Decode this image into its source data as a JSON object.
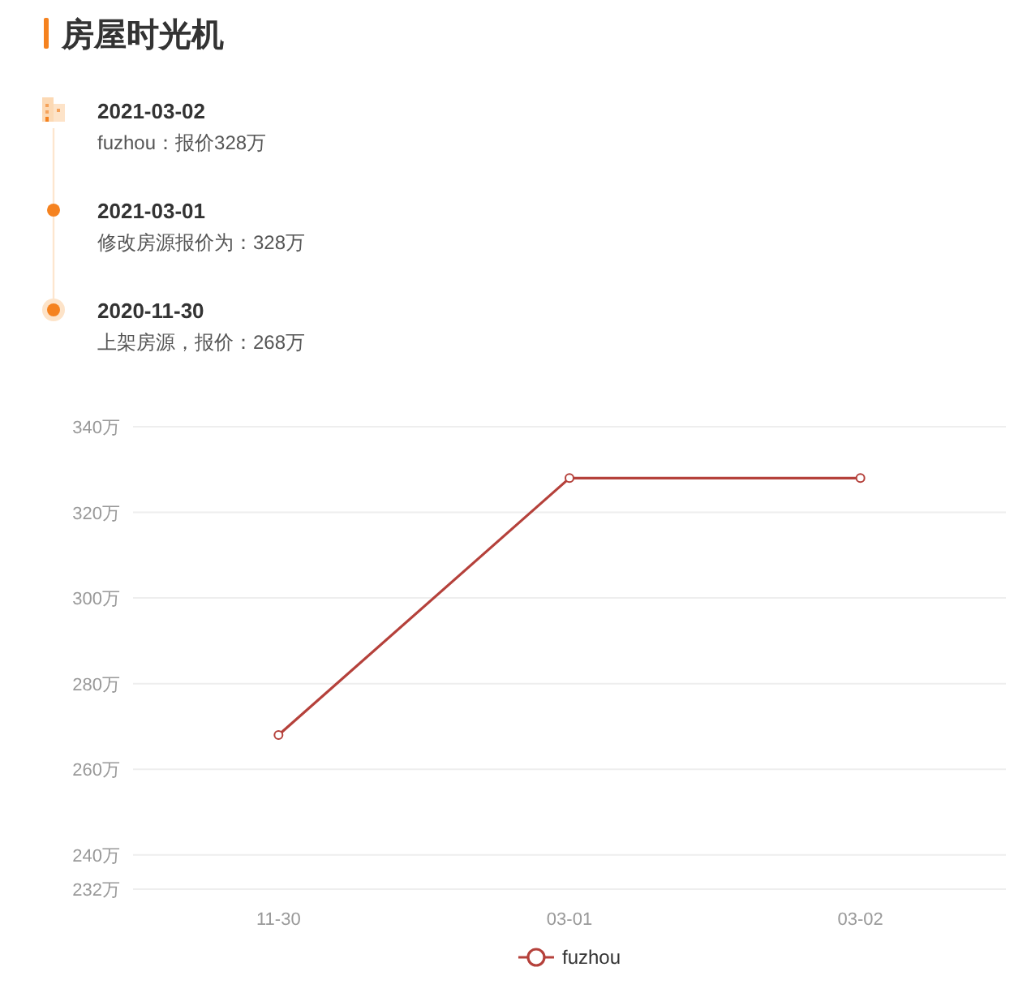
{
  "chart_data": {
    "type": "line",
    "title": "房屋时光机",
    "annotations": [
      "2021-03-02",
      "fuzhou：报价328万",
      "2021-03-01",
      "修改房源报价为：328万",
      "2020-11-30",
      "上架房源，报价：268万"
    ],
    "categories": [
      "11-30",
      "03-01",
      "03-02"
    ],
    "series": [
      {
        "name": "fuzhou",
        "color": "#b5413b",
        "values": [
          268,
          328,
          328
        ]
      }
    ],
    "ylim": [
      232,
      340
    ],
    "yticks": [
      {
        "value": 232,
        "label": "232万"
      },
      {
        "value": 240,
        "label": "240万"
      },
      {
        "value": 260,
        "label": "260万"
      },
      {
        "value": 280,
        "label": "280万"
      },
      {
        "value": 300,
        "label": "300万"
      },
      {
        "value": 320,
        "label": "320万"
      },
      {
        "value": 340,
        "label": "340万"
      }
    ],
    "grid": "y",
    "legend": "bottom",
    "marker": "circle",
    "line_style": "solid"
  }
}
